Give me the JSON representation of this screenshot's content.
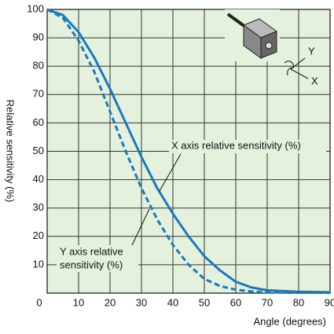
{
  "chart_data": {
    "type": "line",
    "xlabel": "Angle (degrees)",
    "ylabel": "Relative sensitivity (%)",
    "x": [
      0,
      5,
      10,
      15,
      20,
      25,
      30,
      35,
      40,
      45,
      50,
      55,
      60,
      65,
      70,
      80,
      90
    ],
    "series": [
      {
        "name": "X axis relative sensitivity (%)",
        "color": "#1a7abf",
        "dashed": false,
        "values": [
          100,
          98,
          92,
          83,
          72,
          60,
          48,
          37,
          28,
          20,
          13,
          8,
          4,
          2,
          1,
          0.5,
          0.3
        ]
      },
      {
        "name": "Y axis relative sensitivity (%)",
        "color": "#1a7abf",
        "dashed": true,
        "values": [
          100,
          97,
          89,
          78,
          64,
          50,
          37,
          26,
          17,
          10,
          5,
          2.5,
          1.2,
          0.6,
          0.3,
          0.2,
          0.1
        ]
      }
    ],
    "annotations": [
      "X axis relative sensitivity (%)",
      "Y axis relative",
      "sensitivity (%)"
    ],
    "inset_labels": [
      "Y",
      "X"
    ],
    "xlim": [
      0,
      90
    ],
    "ylim": [
      0,
      100
    ],
    "xticks": [
      0,
      10,
      20,
      30,
      40,
      50,
      60,
      70,
      80,
      90
    ],
    "yticks": [
      10,
      20,
      30,
      40,
      50,
      60,
      70,
      80,
      90,
      100
    ],
    "grid": true
  }
}
